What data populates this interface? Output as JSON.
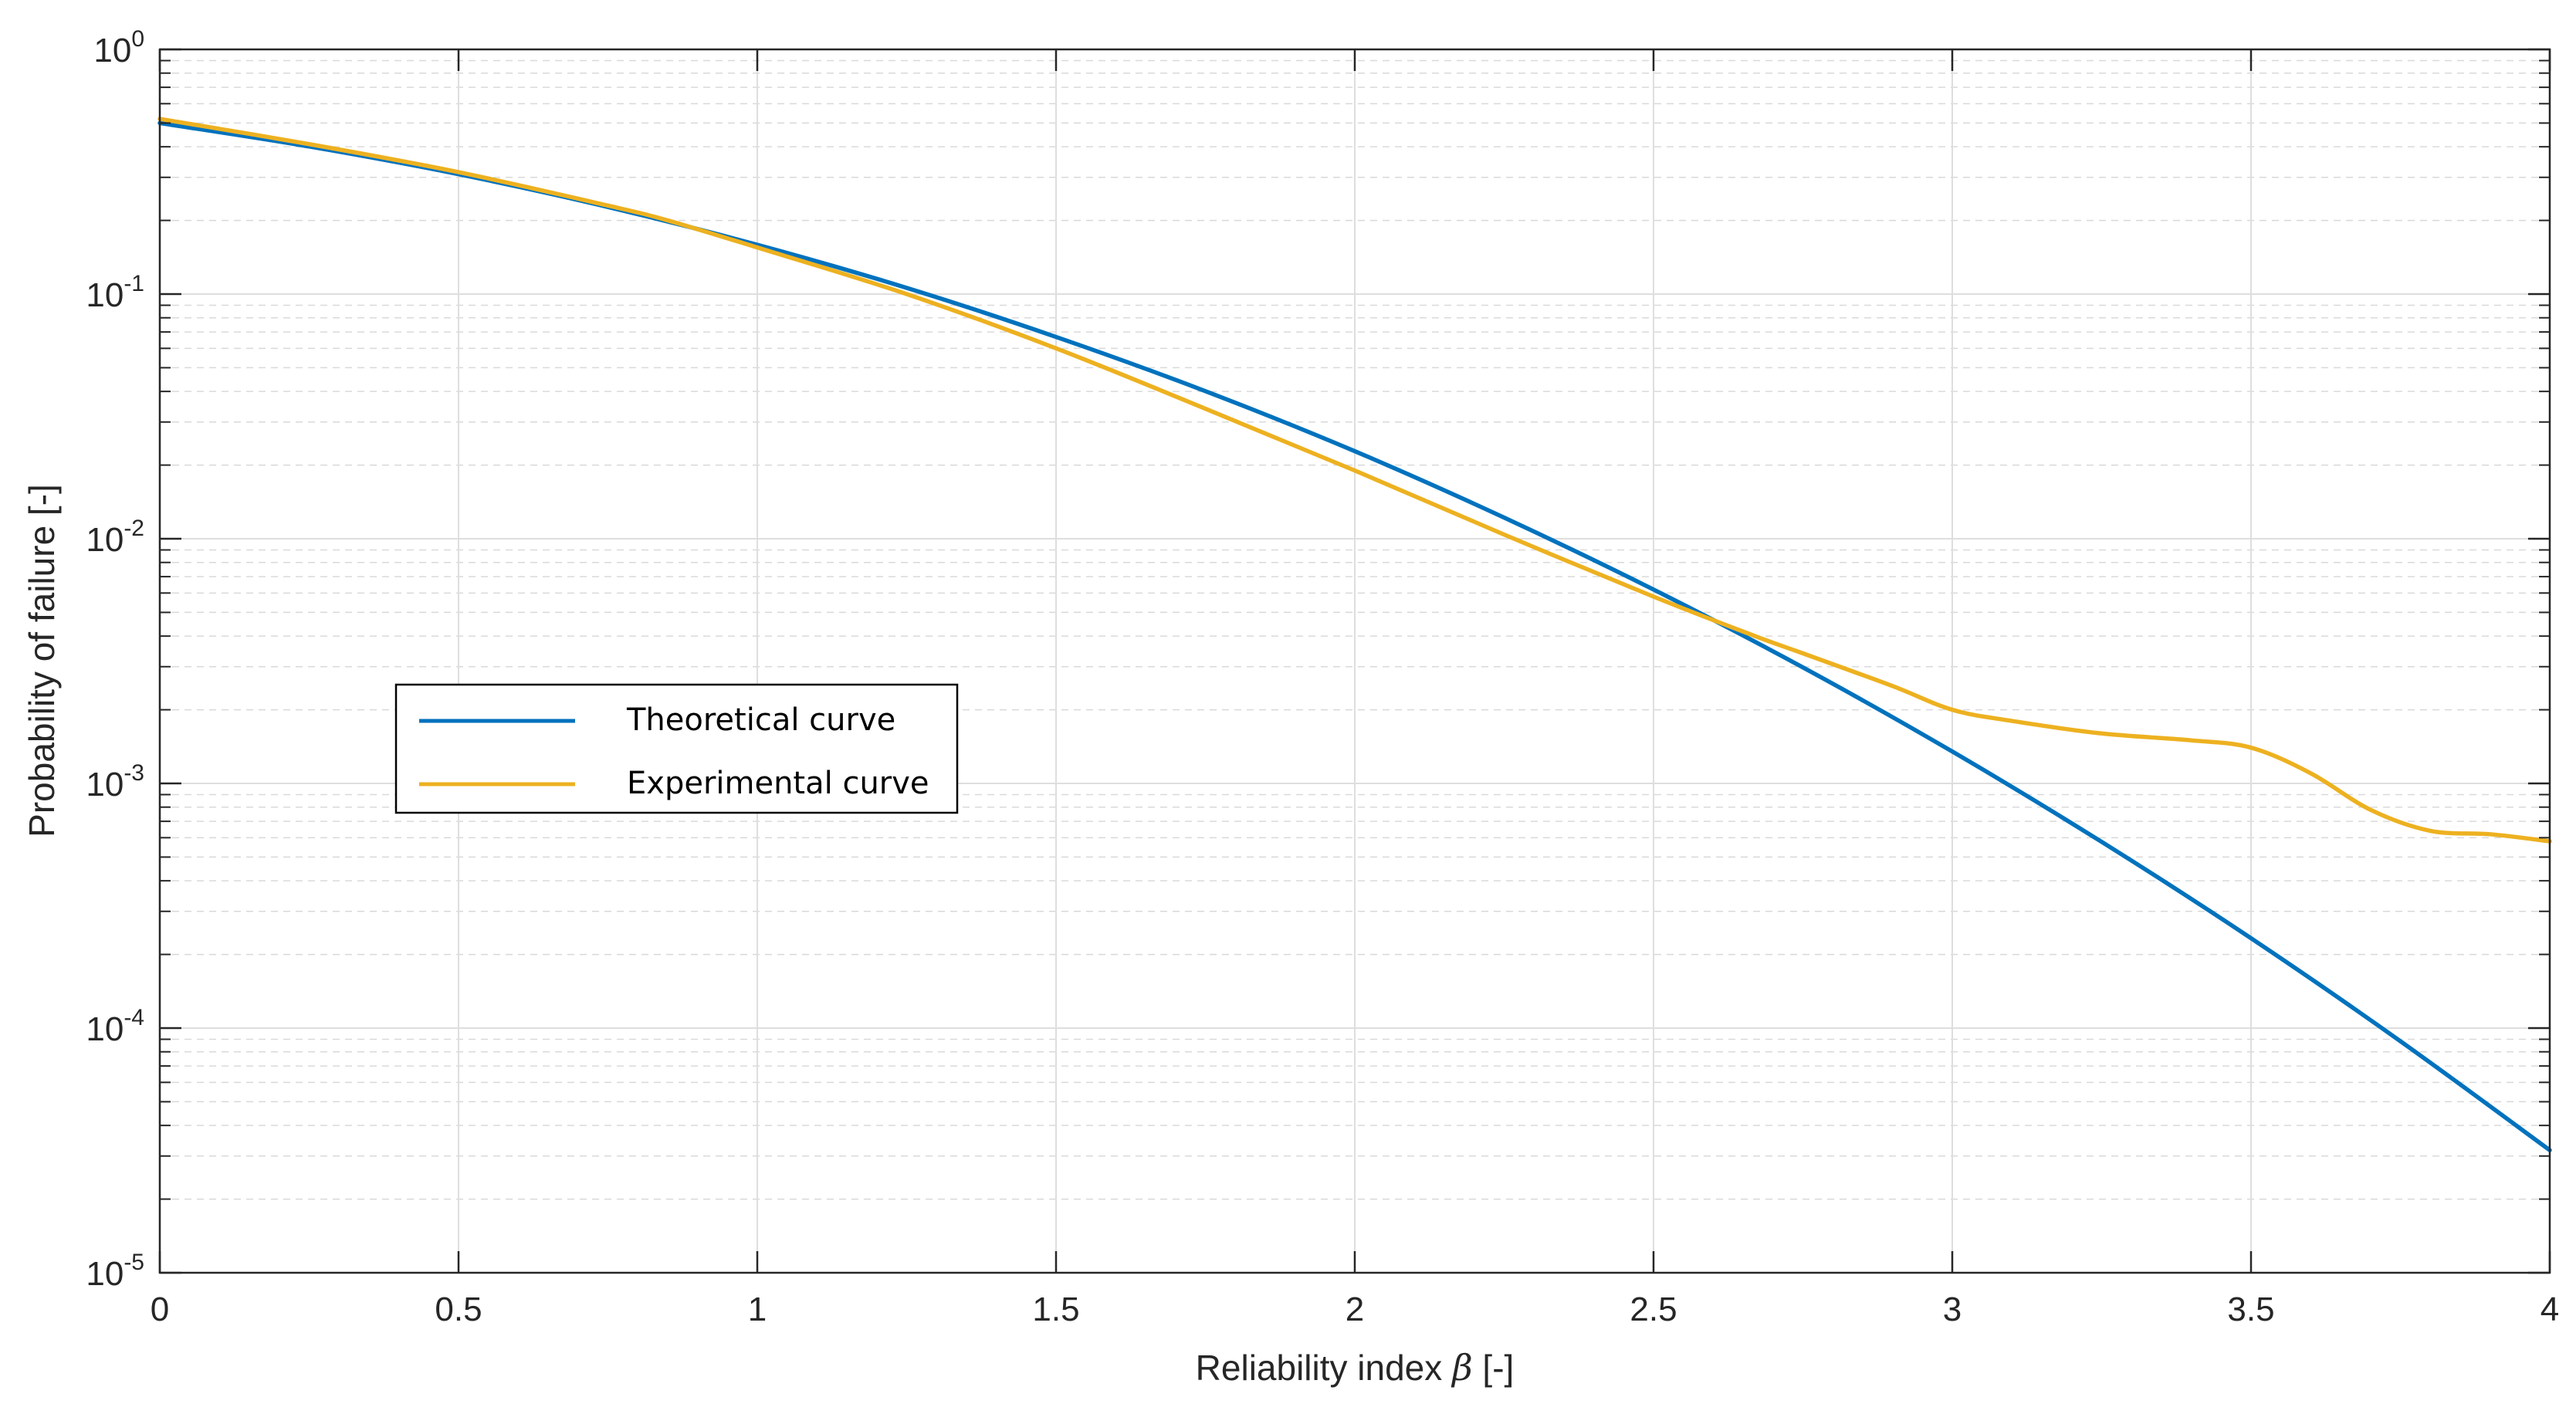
{
  "chart_data": {
    "type": "line",
    "xlabel": "Reliability index β [-]",
    "xlabel_prefix": "Reliability index ",
    "xlabel_symbol": "β",
    "xlabel_suffix": " [-]",
    "ylabel": "Probability of failure [-]",
    "xlim": [
      0,
      4
    ],
    "ylim": [
      1e-05,
      1
    ],
    "yscale": "log",
    "x_ticks": [
      "0",
      "0.5",
      "1",
      "1.5",
      "2",
      "2.5",
      "3",
      "3.5",
      "4"
    ],
    "y_ticks": [
      {
        "base": "10",
        "exp": "0"
      },
      {
        "base": "10",
        "exp": "-1"
      },
      {
        "base": "10",
        "exp": "-2"
      },
      {
        "base": "10",
        "exp": "-3"
      },
      {
        "base": "10",
        "exp": "-4"
      },
      {
        "base": "10",
        "exp": "-5"
      }
    ],
    "grid": true,
    "minor_grid": true,
    "legend_position": "center-left",
    "series": [
      {
        "name": "Theoretical curve",
        "color": "#0072BD",
        "points": [
          [
            0,
            0.5
          ],
          [
            0.25,
            0.401
          ],
          [
            0.5,
            0.309
          ],
          [
            0.75,
            0.227
          ],
          [
            1,
            0.159
          ],
          [
            1.25,
            0.106
          ],
          [
            1.5,
            0.0668
          ],
          [
            1.75,
            0.0401
          ],
          [
            2,
            0.0228
          ],
          [
            2.25,
            0.0122
          ],
          [
            2.5,
            0.0062
          ],
          [
            2.75,
            0.00298
          ],
          [
            3,
            0.00135
          ],
          [
            3.25,
            0.000577
          ],
          [
            3.5,
            0.000233
          ],
          [
            3.75,
            8.84e-05
          ],
          [
            4,
            3.17e-05
          ]
        ]
      },
      {
        "name": "Experimental curve",
        "color": "#EDB120",
        "points": [
          [
            0,
            0.52
          ],
          [
            0.25,
            0.41
          ],
          [
            0.5,
            0.315
          ],
          [
            0.75,
            0.23
          ],
          [
            0.85,
            0.2
          ],
          [
            1,
            0.155
          ],
          [
            1.25,
            0.1
          ],
          [
            1.5,
            0.06
          ],
          [
            1.75,
            0.034
          ],
          [
            2,
            0.019
          ],
          [
            2.25,
            0.0104
          ],
          [
            2.5,
            0.0058
          ],
          [
            2.67,
            0.004
          ],
          [
            2.75,
            0.0034
          ],
          [
            2.9,
            0.0025
          ],
          [
            3,
            0.002
          ],
          [
            3.1,
            0.0018
          ],
          [
            3.25,
            0.0016
          ],
          [
            3.4,
            0.0015
          ],
          [
            3.5,
            0.0014
          ],
          [
            3.6,
            0.0011
          ],
          [
            3.7,
            0.00078
          ],
          [
            3.8,
            0.00064
          ],
          [
            3.9,
            0.00062
          ],
          [
            4,
            0.00058
          ]
        ]
      }
    ]
  }
}
